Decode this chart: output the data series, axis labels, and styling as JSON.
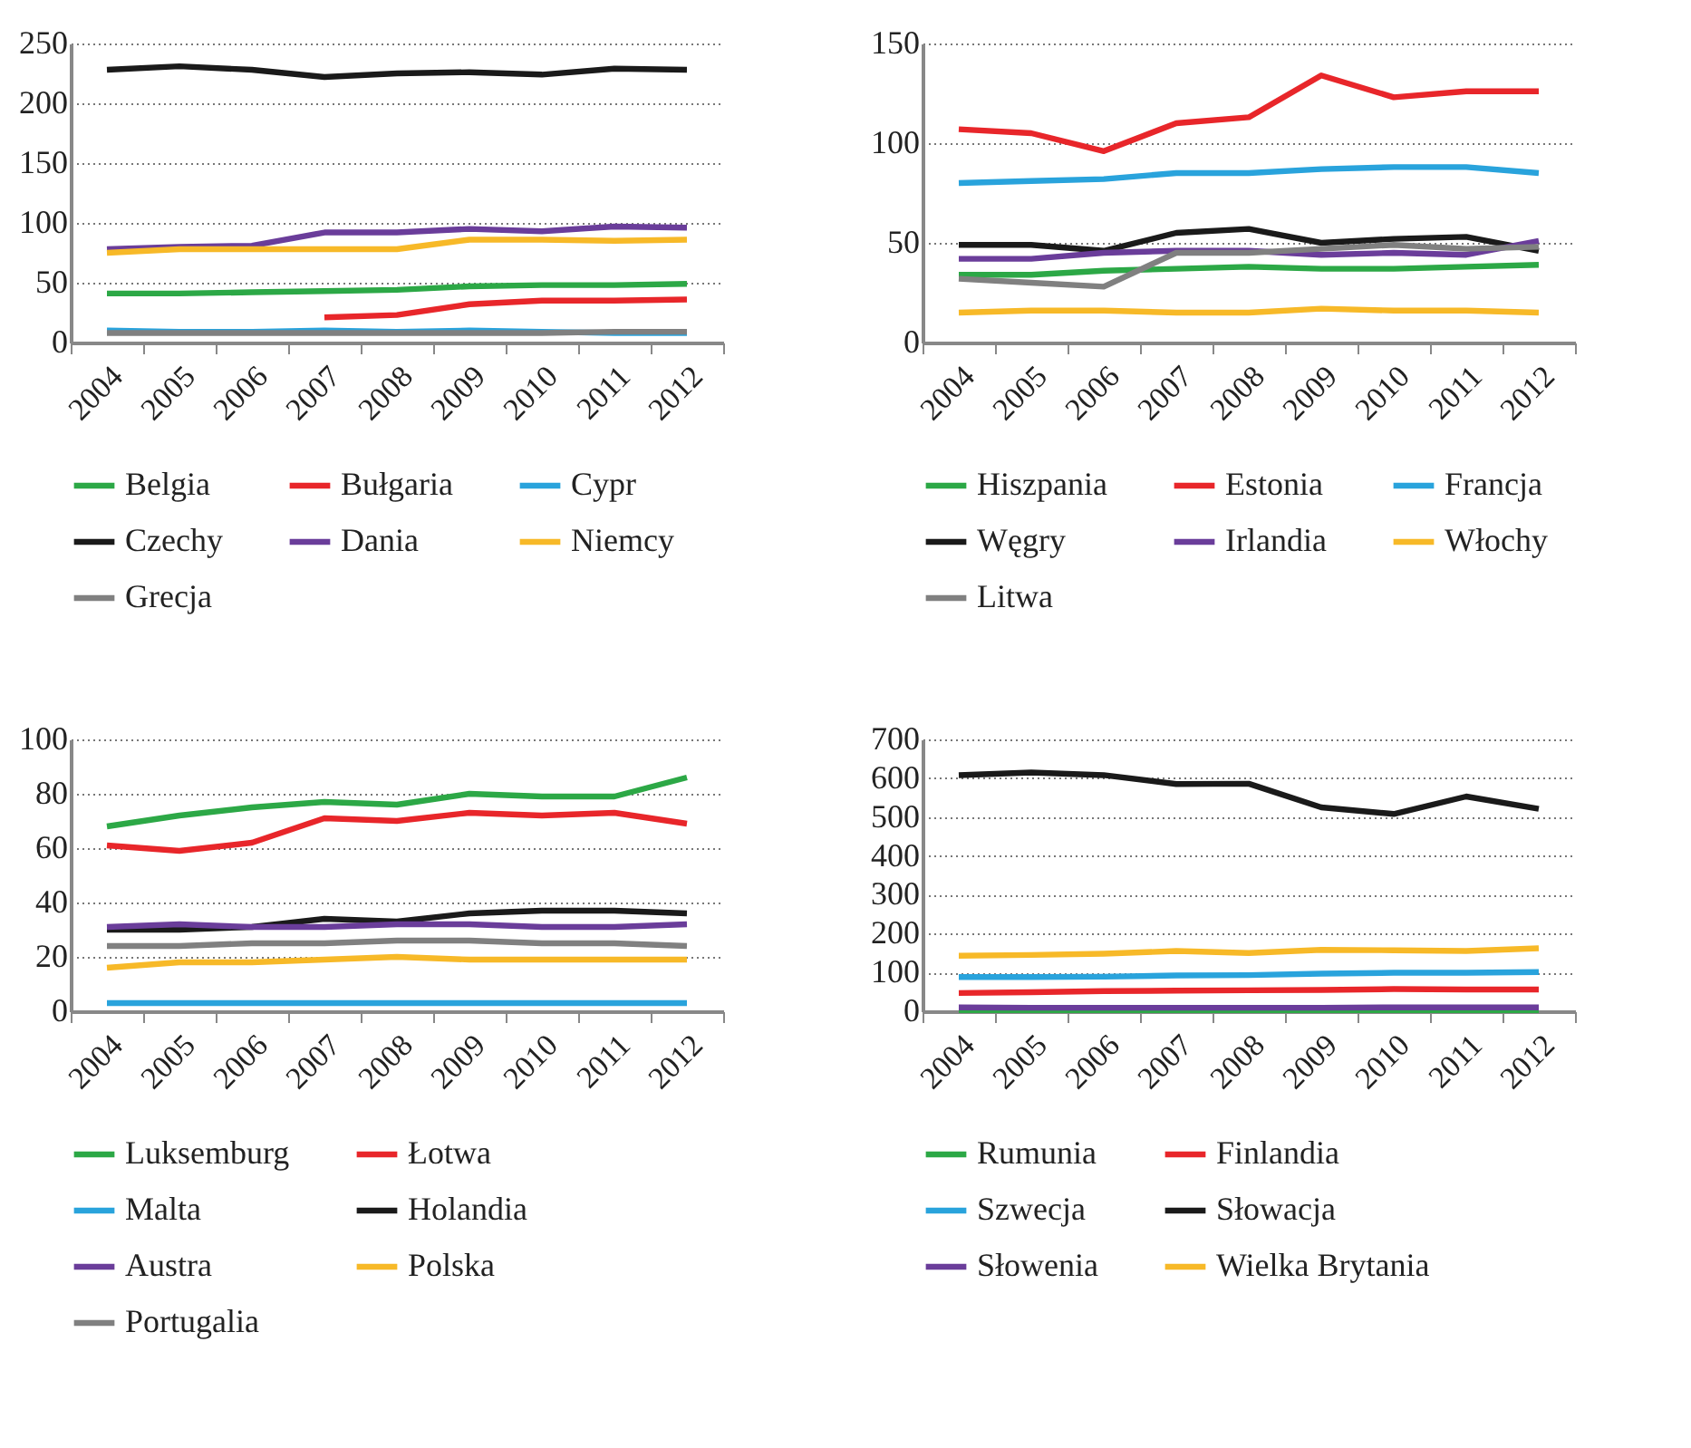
{
  "chart_data": [
    {
      "type": "line",
      "categories": [
        "2004",
        "2005",
        "2006",
        "2007",
        "2008",
        "2009",
        "2010",
        "2011",
        "2012"
      ],
      "ylim": [
        0,
        250
      ],
      "yticks": [
        0,
        50,
        100,
        150,
        200,
        250
      ],
      "grid": "y",
      "legend": "bottom",
      "line_style": "solid",
      "marker": "none",
      "series": [
        {
          "name": "Belgia",
          "color": "#2ca846",
          "values": [
            41,
            41,
            42,
            43,
            44,
            47,
            48,
            48,
            49
          ]
        },
        {
          "name": "Bułgaria",
          "color": "#e8262a",
          "values": [
            null,
            null,
            null,
            21,
            23,
            32,
            35,
            35,
            36
          ]
        },
        {
          "name": "Cypr",
          "color": "#29a3dc",
          "values": [
            10,
            9,
            9,
            10,
            9,
            10,
            9,
            8,
            8
          ]
        },
        {
          "name": "Czechy",
          "color": "#1a1a1a",
          "values": [
            228,
            231,
            228,
            222,
            225,
            226,
            224,
            229,
            228
          ]
        },
        {
          "name": "Dania",
          "color": "#6a3d9a",
          "values": [
            78,
            80,
            81,
            92,
            92,
            95,
            93,
            97,
            96
          ]
        },
        {
          "name": "Niemcy",
          "color": "#f7b928",
          "values": [
            75,
            78,
            78,
            78,
            78,
            86,
            86,
            85,
            86
          ]
        },
        {
          "name": "Grecja",
          "color": "#808080",
          "values": [
            8,
            8,
            8,
            8,
            8,
            8,
            8,
            9,
            9
          ]
        }
      ]
    },
    {
      "type": "line",
      "categories": [
        "2004",
        "2005",
        "2006",
        "2007",
        "2008",
        "2009",
        "2010",
        "2011",
        "2012"
      ],
      "ylim": [
        0,
        150
      ],
      "yticks": [
        0,
        50,
        100,
        150
      ],
      "grid": "y",
      "legend": "bottom",
      "line_style": "solid",
      "marker": "none",
      "series": [
        {
          "name": "Hiszpania",
          "color": "#2ca846",
          "values": [
            34,
            34,
            36,
            37,
            38,
            37,
            37,
            38,
            39
          ]
        },
        {
          "name": "Estonia",
          "color": "#e8262a",
          "values": [
            107,
            105,
            96,
            110,
            113,
            134,
            123,
            126,
            126
          ]
        },
        {
          "name": "Francja",
          "color": "#29a3dc",
          "values": [
            80,
            81,
            82,
            85,
            85,
            87,
            88,
            88,
            85
          ]
        },
        {
          "name": "Węgry",
          "color": "#1a1a1a",
          "values": [
            49,
            49,
            46,
            55,
            57,
            50,
            52,
            53,
            46
          ]
        },
        {
          "name": "Irlandia",
          "color": "#6a3d9a",
          "values": [
            42,
            42,
            45,
            46,
            46,
            44,
            45,
            44,
            51
          ]
        },
        {
          "name": "Włochy",
          "color": "#f7b928",
          "values": [
            15,
            16,
            16,
            15,
            15,
            17,
            16,
            16,
            15
          ]
        },
        {
          "name": "Litwa",
          "color": "#808080",
          "values": [
            32,
            30,
            28,
            45,
            45,
            47,
            49,
            47,
            48
          ]
        }
      ]
    },
    {
      "type": "line",
      "categories": [
        "2004",
        "2005",
        "2006",
        "2007",
        "2008",
        "2009",
        "2010",
        "2011",
        "2012"
      ],
      "ylim": [
        0,
        100
      ],
      "yticks": [
        0,
        20,
        40,
        60,
        80,
        100
      ],
      "grid": "y",
      "legend": "bottom",
      "line_style": "solid",
      "marker": "none",
      "series": [
        {
          "name": "Luksemburg",
          "color": "#2ca846",
          "values": [
            68,
            72,
            75,
            77,
            76,
            80,
            79,
            79,
            86
          ]
        },
        {
          "name": "Łotwa",
          "color": "#e8262a",
          "values": [
            61,
            59,
            62,
            71,
            70,
            73,
            72,
            73,
            69
          ]
        },
        {
          "name": "Malta",
          "color": "#29a3dc",
          "values": [
            3,
            3,
            3,
            3,
            3,
            3,
            3,
            3,
            3
          ]
        },
        {
          "name": "Holandia",
          "color": "#1a1a1a",
          "values": [
            30,
            30,
            31,
            34,
            33,
            36,
            37,
            37,
            36
          ]
        },
        {
          "name": "Austra",
          "color": "#6a3d9a",
          "values": [
            31,
            32,
            31,
            31,
            32,
            32,
            31,
            31,
            32
          ]
        },
        {
          "name": "Polska",
          "color": "#f7b928",
          "values": [
            16,
            18,
            18,
            19,
            20,
            19,
            19,
            19,
            19
          ]
        },
        {
          "name": "Portugalia",
          "color": "#808080",
          "values": [
            24,
            24,
            25,
            25,
            26,
            26,
            25,
            25,
            24
          ]
        }
      ]
    },
    {
      "type": "line",
      "categories": [
        "2004",
        "2005",
        "2006",
        "2007",
        "2008",
        "2009",
        "2010",
        "2011",
        "2012"
      ],
      "ylim": [
        0,
        700
      ],
      "yticks": [
        0,
        100,
        200,
        300,
        400,
        500,
        600,
        700
      ],
      "grid": "y",
      "legend": "bottom",
      "line_style": "solid",
      "marker": "none",
      "series": [
        {
          "name": "Rumunia",
          "color": "#2ca846",
          "values": [
            3,
            3,
            3,
            3,
            3,
            3,
            3,
            3,
            3
          ]
        },
        {
          "name": "Finlandia",
          "color": "#e8262a",
          "values": [
            47,
            49,
            52,
            53,
            54,
            55,
            57,
            56,
            56
          ]
        },
        {
          "name": "Szwecja",
          "color": "#29a3dc",
          "values": [
            88,
            88,
            89,
            92,
            93,
            97,
            99,
            99,
            101
          ]
        },
        {
          "name": "Słowacja",
          "color": "#1a1a1a",
          "values": [
            608,
            615,
            608,
            585,
            586,
            525,
            508,
            553,
            521
          ]
        },
        {
          "name": "Słowenia",
          "color": "#6a3d9a",
          "values": [
            10,
            9,
            9,
            9,
            9,
            9,
            10,
            10,
            10
          ]
        },
        {
          "name": "Wielka Brytania",
          "color": "#f7b928",
          "values": [
            143,
            145,
            148,
            155,
            150,
            158,
            157,
            155,
            162
          ]
        }
      ]
    }
  ]
}
